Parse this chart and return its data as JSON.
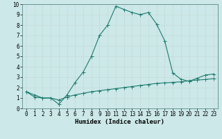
{
  "line1_x": [
    0,
    1,
    2,
    3,
    4,
    5,
    6,
    7,
    8,
    9,
    10,
    11,
    12,
    13,
    14,
    15,
    16,
    17,
    18,
    19,
    20,
    21,
    22,
    23
  ],
  "line1_y": [
    1.6,
    1.3,
    1.0,
    1.0,
    0.4,
    1.3,
    2.5,
    3.5,
    5.0,
    7.0,
    8.0,
    9.8,
    9.5,
    9.2,
    9.0,
    9.2,
    8.1,
    6.5,
    3.4,
    2.8,
    2.6,
    2.9,
    3.2,
    3.3
  ],
  "line2_x": [
    0,
    1,
    2,
    3,
    4,
    5,
    6,
    7,
    8,
    9,
    10,
    11,
    12,
    13,
    14,
    15,
    16,
    17,
    18,
    19,
    20,
    21,
    22,
    23
  ],
  "line2_y": [
    1.6,
    1.1,
    1.0,
    1.0,
    0.8,
    1.1,
    1.3,
    1.45,
    1.6,
    1.7,
    1.8,
    1.9,
    2.0,
    2.1,
    2.2,
    2.3,
    2.4,
    2.45,
    2.5,
    2.55,
    2.65,
    2.72,
    2.78,
    2.85
  ],
  "line_color": "#1a7a6e",
  "bg_color": "#cce8e8",
  "grid_color": "#c8dcdc",
  "xlabel": "Humidex (Indice chaleur)",
  "xlim": [
    -0.5,
    23.5
  ],
  "ylim": [
    0,
    10
  ],
  "xticks": [
    0,
    1,
    2,
    3,
    4,
    5,
    6,
    7,
    8,
    9,
    10,
    11,
    12,
    13,
    14,
    15,
    16,
    17,
    18,
    19,
    20,
    21,
    22,
    23
  ],
  "yticks": [
    0,
    1,
    2,
    3,
    4,
    5,
    6,
    7,
    8,
    9,
    10
  ],
  "xlabel_fontsize": 6.5,
  "tick_fontsize": 5.5,
  "markersize": 2.0,
  "linewidth": 0.8
}
